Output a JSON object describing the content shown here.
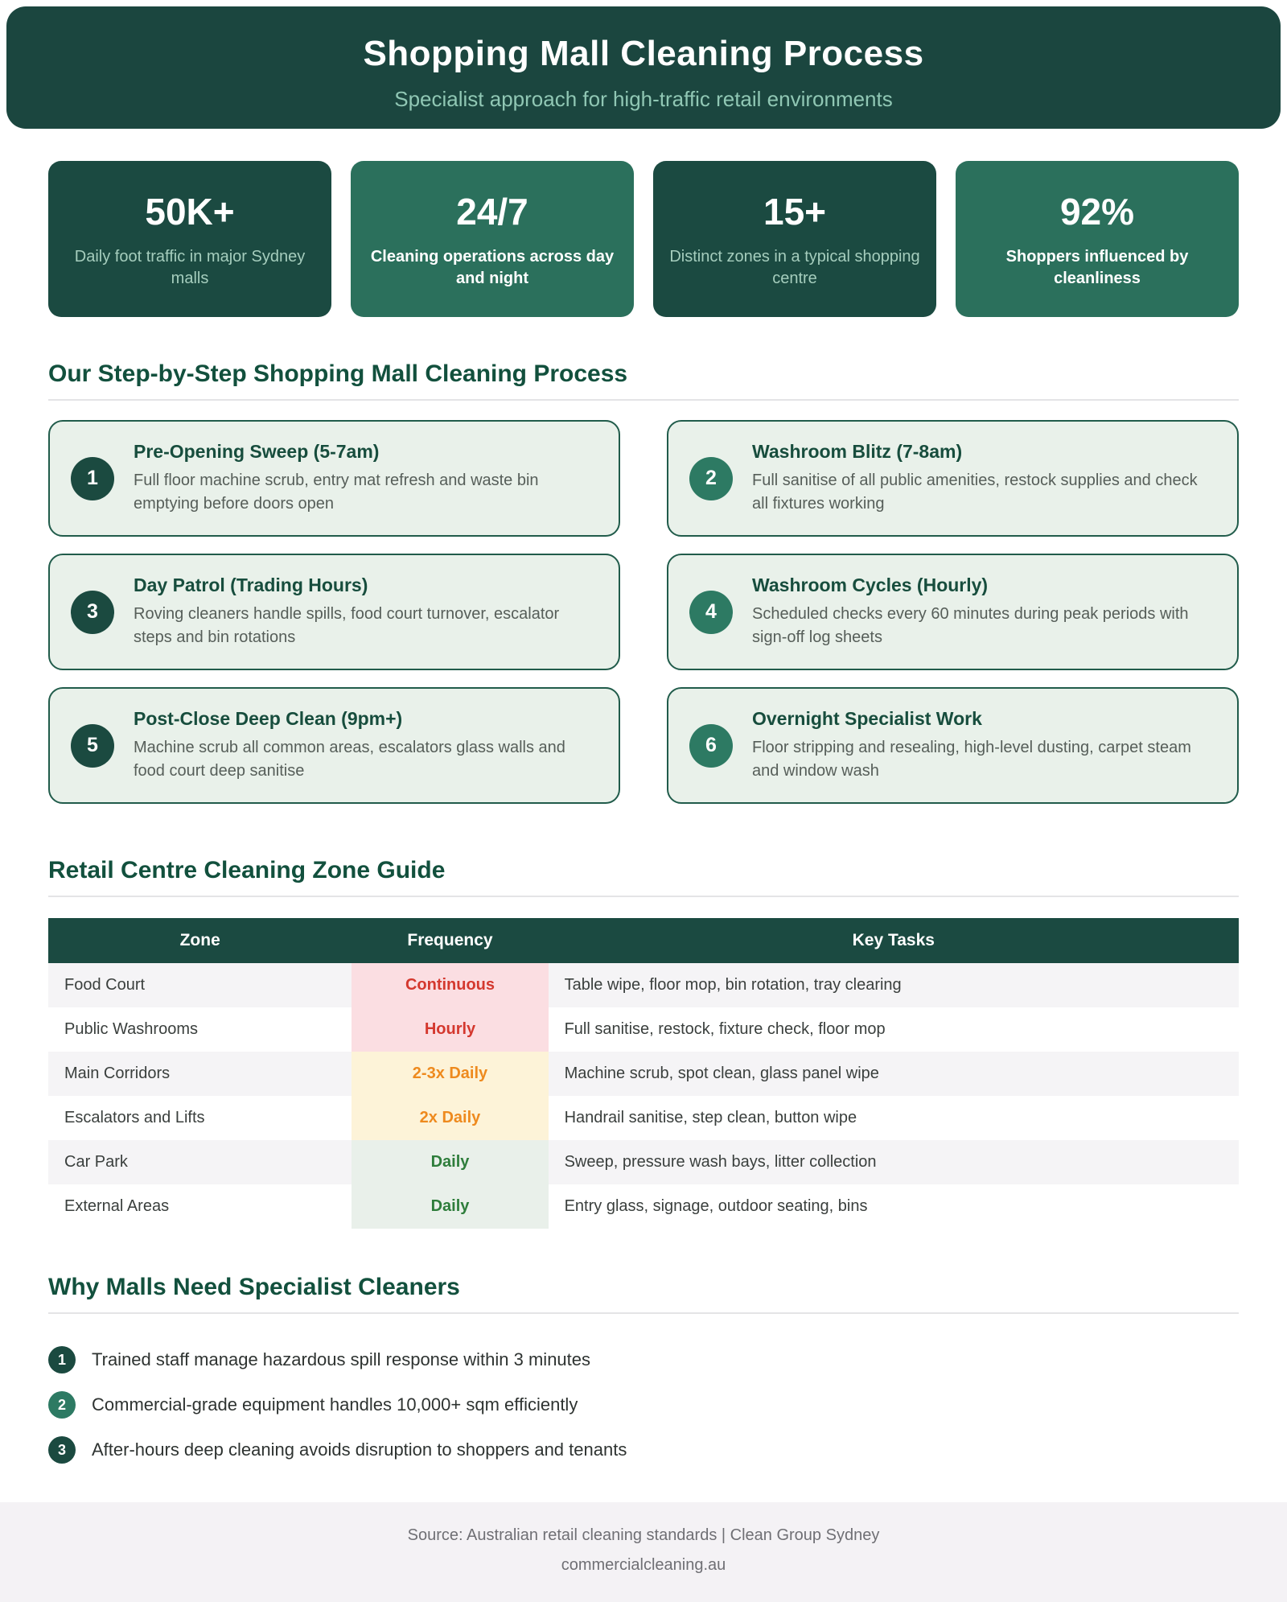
{
  "header": {
    "title": "Shopping Mall Cleaning Process",
    "subtitle": "Specialist approach for high-traffic retail environments"
  },
  "stats": {
    "items": [
      {
        "value": "50K+",
        "label": "Daily foot traffic in major Sydney malls"
      },
      {
        "value": "24/7",
        "label": "Cleaning operations across day and night"
      },
      {
        "value": "15+",
        "label": "Distinct zones in a typical shopping centre"
      },
      {
        "value": "92%",
        "label": "Shoppers influenced by cleanliness"
      }
    ]
  },
  "process": {
    "heading": "Our Step-by-Step Shopping Mall Cleaning Process",
    "steps": [
      {
        "num": "1",
        "title": "Pre-Opening Sweep (5-7am)",
        "desc": "Full floor machine scrub, entry mat refresh and waste bin emptying before doors open"
      },
      {
        "num": "2",
        "title": "Washroom Blitz (7-8am)",
        "desc": "Full sanitise of all public amenities, restock supplies and check all fixtures working"
      },
      {
        "num": "3",
        "title": "Day Patrol (Trading Hours)",
        "desc": "Roving cleaners handle spills, food court turnover, escalator steps and bin rotations"
      },
      {
        "num": "4",
        "title": "Washroom Cycles (Hourly)",
        "desc": "Scheduled checks every 60 minutes during peak periods with sign-off log sheets"
      },
      {
        "num": "5",
        "title": "Post-Close Deep Clean (9pm+)",
        "desc": "Machine scrub all common areas, escalators glass walls and food court deep sanitise"
      },
      {
        "num": "6",
        "title": "Overnight Specialist Work",
        "desc": "Floor stripping and resealing, high-level dusting, carpet steam and window wash"
      }
    ]
  },
  "zones": {
    "heading": "Retail Centre Cleaning Zone Guide",
    "columns": {
      "zone": "Zone",
      "frequency": "Frequency",
      "tasks": "Key Tasks"
    },
    "rows": [
      {
        "zone": "Food Court",
        "frequency": "Continuous",
        "tasks": "Table wipe, floor mop, bin rotation, tray clearing"
      },
      {
        "zone": "Public Washrooms",
        "frequency": "Hourly",
        "tasks": "Full sanitise, restock, fixture check, floor mop"
      },
      {
        "zone": "Main Corridors",
        "frequency": "2-3x Daily",
        "tasks": "Machine scrub, spot clean, glass panel wipe"
      },
      {
        "zone": "Escalators and Lifts",
        "frequency": "2x Daily",
        "tasks": "Handrail sanitise, step clean, button wipe"
      },
      {
        "zone": "Car Park",
        "frequency": "Daily",
        "tasks": "Sweep, pressure wash bays, litter collection"
      },
      {
        "zone": "External Areas",
        "frequency": "Daily",
        "tasks": "Entry glass, signage, outdoor seating, bins"
      }
    ]
  },
  "why": {
    "heading": "Why Malls Need Specialist Cleaners",
    "bullets": [
      {
        "num": "1",
        "text": "Trained staff manage hazardous spill response within 3 minutes"
      },
      {
        "num": "2",
        "text": "Commercial-grade equipment handles 10,000+ sqm efficiently"
      },
      {
        "num": "3",
        "text": "After-hours deep cleaning avoids disruption to shoppers and tenants"
      }
    ]
  },
  "footer": {
    "source": "Source: Australian retail cleaning standards | Clean Group Sydney",
    "website": "commercialcleaning.au"
  },
  "colors": {
    "header_bg": "#1b463f",
    "stat_dark": "#1b4a41",
    "stat_green": "#2b705c",
    "step_card_bg": "#e9f1ea",
    "step_border": "#215c4b",
    "freq_red": "#d4382e",
    "freq_orange": "#ee8a1e",
    "freq_green": "#2e7d3b"
  }
}
